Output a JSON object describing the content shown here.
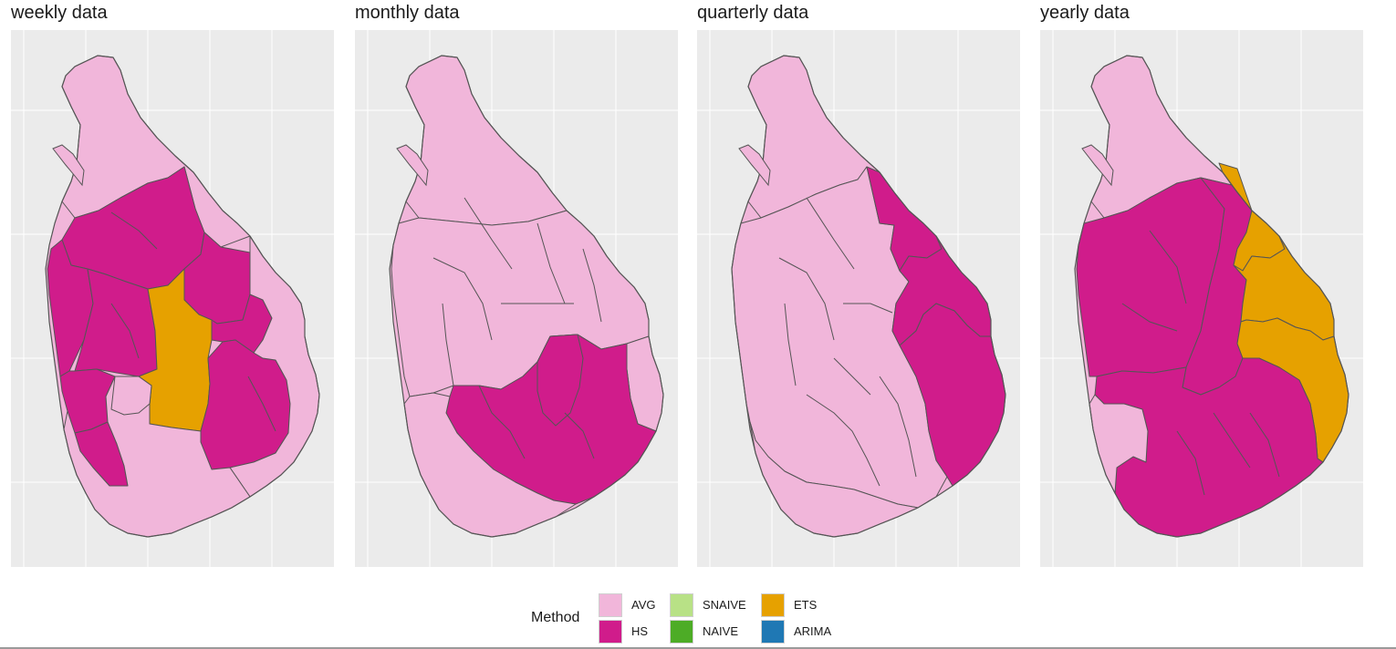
{
  "colors": {
    "panel_background": "#ebebeb",
    "gridline": "#ffffff",
    "district_border": "#555555",
    "AVG": "#f1b6da",
    "HS": "#d01c8b",
    "SNAIVE": "#b8e186",
    "NAIVE": "#4dac26",
    "ETS": "#e6a100",
    "ARIMA": "#1f78b4"
  },
  "panels": [
    {
      "title": "weekly data",
      "regions": {
        "north": "AVG",
        "upper_west": "HS",
        "northwest": "HS",
        "north_central": "HS",
        "east_central": "HS",
        "west": "HS",
        "central": "ETS",
        "uva_upper": "HS",
        "uva_lower": "HS",
        "southwest": "HS",
        "east_coast": "AVG",
        "south": "AVG",
        "west_center": "AVG"
      }
    },
    {
      "title": "monthly data",
      "regions": {
        "north": "AVG",
        "middle": "AVG",
        "east": "AVG",
        "south_belt": "HS",
        "southeast": "HS",
        "south": "AVG"
      }
    },
    {
      "title": "quarterly data",
      "regions": {
        "north": "AVG",
        "middle": "AVG",
        "trincomalee": "HS",
        "batticaloa": "HS",
        "ampara": "HS",
        "south": "AVG"
      }
    },
    {
      "title": "yearly data",
      "regions": {
        "north": "AVG",
        "west_block": "HS",
        "central_block": "HS",
        "trincomalee": "ETS",
        "batticaloa": "ETS",
        "ampara": "ETS",
        "south_block": "HS",
        "colombo": "AVG"
      }
    }
  ],
  "legend": {
    "title": "Method",
    "items": [
      {
        "label": "AVG",
        "method": "AVG"
      },
      {
        "label": "HS",
        "method": "HS"
      },
      {
        "label": "SNAIVE",
        "method": "SNAIVE"
      },
      {
        "label": "NAIVE",
        "method": "NAIVE"
      },
      {
        "label": "ETS",
        "method": "ETS"
      },
      {
        "label": "ARIMA",
        "method": "ARIMA"
      }
    ]
  }
}
